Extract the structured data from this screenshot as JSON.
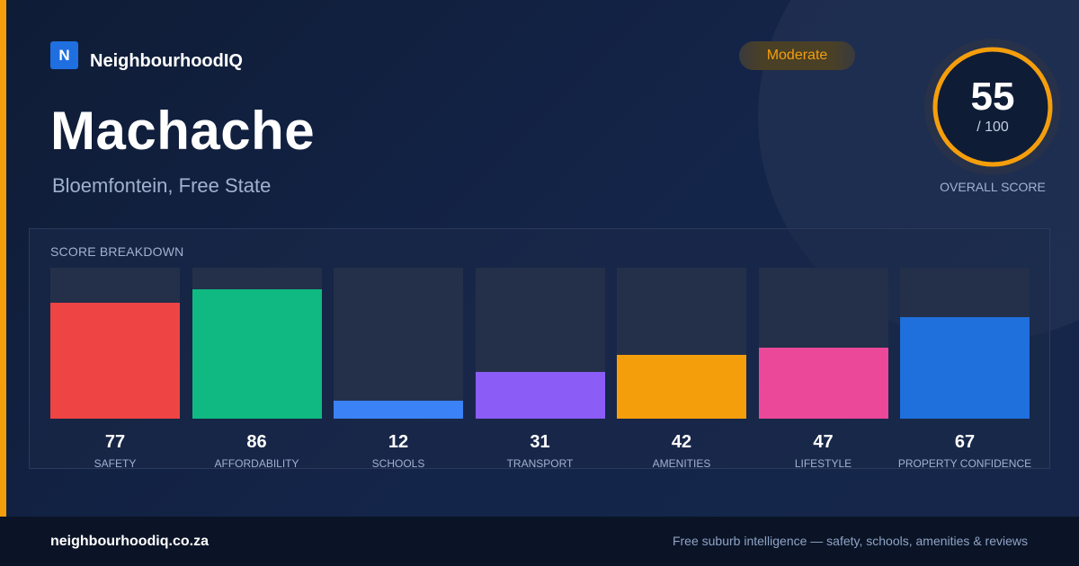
{
  "brand": {
    "logo_letter": "N",
    "name": "NeighbourhoodIQ"
  },
  "suburb": {
    "name": "Machache",
    "location": "Bloemfontein, Free State"
  },
  "badge": {
    "label": "Moderate",
    "color": "#f59e0b"
  },
  "overall": {
    "score": "55",
    "max_label": "/ 100",
    "label": "OVERALL SCORE",
    "value": 55,
    "max": 100,
    "ring_color": "#f59e0b"
  },
  "chart_data": {
    "type": "bar",
    "title": "SCORE BREAKDOWN",
    "categories": [
      "SAFETY",
      "AFFORDABILITY",
      "SCHOOLS",
      "TRANSPORT",
      "AMENITIES",
      "LIFESTYLE",
      "PROPERTY CONFIDENCE"
    ],
    "values": [
      77,
      86,
      12,
      31,
      42,
      47,
      67
    ],
    "colors": [
      "#ef4444",
      "#10b981",
      "#3b82f6",
      "#8b5cf6",
      "#f59e0b",
      "#ec4899",
      "#1f6fdc"
    ],
    "ylim": [
      0,
      100
    ],
    "grid": false,
    "legend": "none"
  },
  "footer": {
    "url": "neighbourhoodiq.co.za",
    "tagline": "Free suburb intelligence — safety, schools, amenities & reviews"
  }
}
